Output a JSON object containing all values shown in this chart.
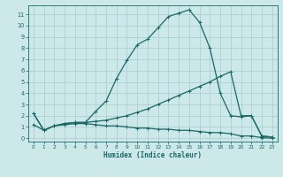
{
  "xlabel": "Humidex (Indice chaleur)",
  "xlim": [
    -0.5,
    23.5
  ],
  "ylim": [
    -0.3,
    11.8
  ],
  "xticks": [
    0,
    1,
    2,
    3,
    4,
    5,
    6,
    7,
    8,
    9,
    10,
    11,
    12,
    13,
    14,
    15,
    16,
    17,
    18,
    19,
    20,
    21,
    22,
    23
  ],
  "yticks": [
    0,
    1,
    2,
    3,
    4,
    5,
    6,
    7,
    8,
    9,
    10,
    11
  ],
  "bg_color": "#cce8e8",
  "grid_color": "#a8cccc",
  "line_color": "#1a6868",
  "curve1_x": [
    0,
    1,
    2,
    3,
    4,
    5,
    6,
    7,
    8,
    9,
    10,
    11,
    12,
    13,
    14,
    15,
    16,
    17,
    18,
    19,
    20,
    21,
    22,
    23
  ],
  "curve1_y": [
    2.2,
    0.7,
    1.1,
    1.3,
    1.4,
    1.4,
    2.4,
    3.3,
    5.3,
    6.9,
    8.3,
    8.8,
    9.8,
    10.8,
    11.1,
    11.4,
    10.3,
    8.0,
    4.0,
    2.0,
    1.9,
    2.0,
    0.2,
    0.1
  ],
  "curve2_x": [
    0,
    1,
    2,
    3,
    4,
    5,
    6,
    7,
    8,
    9,
    10,
    11,
    12,
    13,
    14,
    15,
    16,
    17,
    18,
    19,
    20,
    21,
    22,
    23
  ],
  "curve2_y": [
    2.2,
    0.7,
    1.1,
    1.3,
    1.4,
    1.4,
    1.5,
    1.6,
    1.8,
    2.0,
    2.3,
    2.6,
    3.0,
    3.4,
    3.8,
    4.2,
    4.6,
    5.0,
    5.5,
    5.9,
    2.0,
    2.0,
    0.2,
    0.1
  ],
  "curve3_x": [
    0,
    1,
    2,
    3,
    4,
    5,
    6,
    7,
    8,
    9,
    10,
    11,
    12,
    13,
    14,
    15,
    16,
    17,
    18,
    19,
    20,
    21,
    22,
    23
  ],
  "curve3_y": [
    1.2,
    0.7,
    1.1,
    1.2,
    1.3,
    1.3,
    1.2,
    1.1,
    1.1,
    1.0,
    0.9,
    0.9,
    0.8,
    0.8,
    0.7,
    0.7,
    0.6,
    0.5,
    0.5,
    0.4,
    0.2,
    0.2,
    0.05,
    0.0
  ],
  "marker": "+",
  "markersize": 3,
  "linewidth": 0.9
}
